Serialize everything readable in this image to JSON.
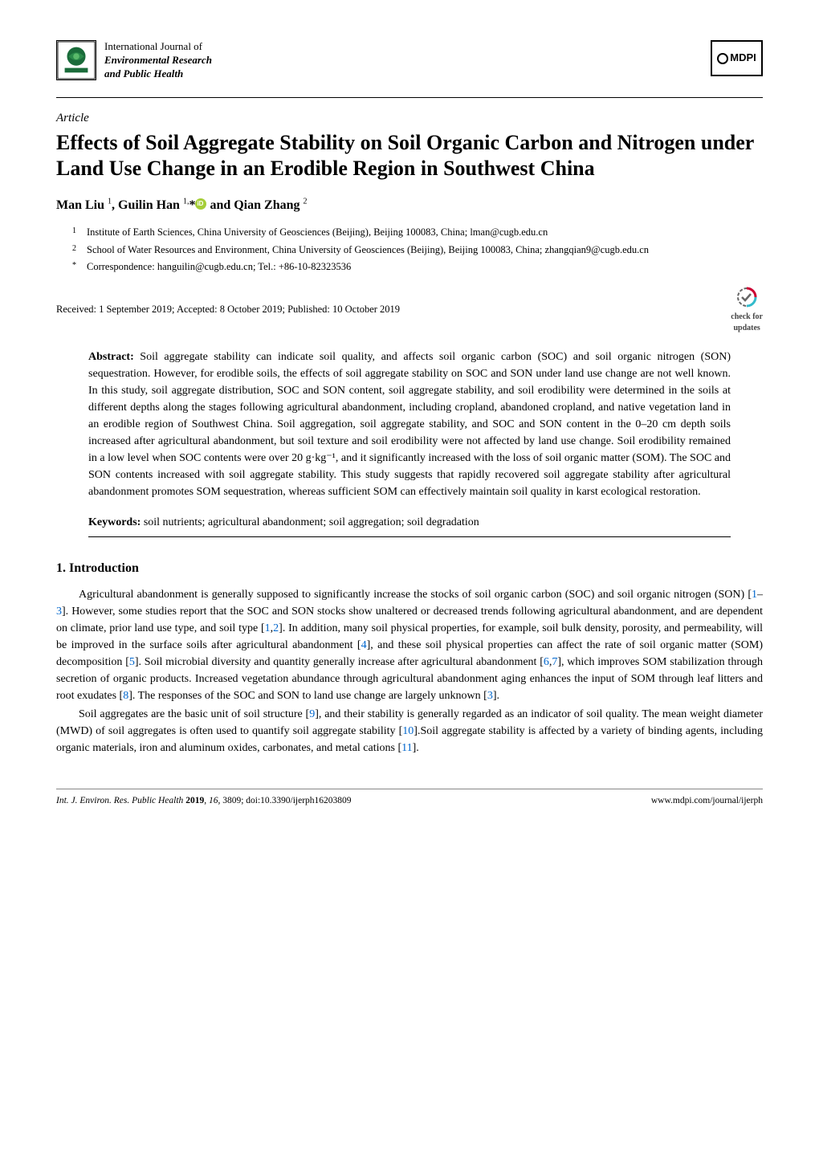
{
  "journal": {
    "line1": "International Journal of",
    "line2": "Environmental Research",
    "line3": "and Public Health"
  },
  "publisher_logo_text": "MDPI",
  "article_type": "Article",
  "title": "Effects of Soil Aggregate Stability on Soil Organic Carbon and Nitrogen under Land Use Change in an Erodible Region in Southwest China",
  "authors_html": "Man Liu <sup>1</sup>, Guilin Han <sup>1,</sup>*",
  "authors_tail": " and Qian Zhang <sup>2</sup>",
  "affiliations": [
    {
      "num": "1",
      "text": "Institute of Earth Sciences, China University of Geosciences (Beijing), Beijing 100083, China; lman@cugb.edu.cn"
    },
    {
      "num": "2",
      "text": "School of Water Resources and Environment, China University of Geosciences (Beijing), Beijing 100083, China; zhangqian9@cugb.edu.cn"
    },
    {
      "num": "*",
      "text": "Correspondence: hanguilin@cugb.edu.cn; Tel.: +86-10-82323536"
    }
  ],
  "dates": "Received: 1 September 2019; Accepted: 8 October 2019; Published: 10 October 2019",
  "check_updates": {
    "line1": "check for",
    "line2": "updates"
  },
  "abstract": {
    "label": "Abstract:",
    "text": " Soil aggregate stability can indicate soil quality, and affects soil organic carbon (SOC) and soil organic nitrogen (SON) sequestration. However, for erodible soils, the effects of soil aggregate stability on SOC and SON under land use change are not well known. In this study, soil aggregate distribution, SOC and SON content, soil aggregate stability, and soil erodibility were determined in the soils at different depths along the stages following agricultural abandonment, including cropland, abandoned cropland, and native vegetation land in an erodible region of Southwest China. Soil aggregation, soil aggregate stability, and SOC and SON content in the 0–20 cm depth soils increased after agricultural abandonment, but soil texture and soil erodibility were not affected by land use change. Soil erodibility remained in a low level when SOC contents were over 20 g·kg⁻¹, and it significantly increased with the loss of soil organic matter (SOM). The SOC and SON contents increased with soil aggregate stability. This study suggests that rapidly recovered soil aggregate stability after agricultural abandonment promotes SOM sequestration, whereas sufficient SOM can effectively maintain soil quality in karst ecological restoration."
  },
  "keywords": {
    "label": "Keywords:",
    "text": " soil nutrients; agricultural abandonment; soil aggregation; soil degradation"
  },
  "section1": {
    "heading": "1. Introduction",
    "para1_pre": "Agricultural abandonment is generally supposed to significantly increase the stocks of soil organic carbon (SOC) and soil organic nitrogen (SON) [",
    "r1": "1",
    "dash1": "–",
    "r3": "3",
    "p1_a": "]. However, some studies report that the SOC and SON stocks show unaltered or decreased trends following agricultural abandonment, and are dependent on climate, prior land use type, and soil type [",
    "r1b": "1",
    "comma1": ",",
    "r2": "2",
    "p1_b": "]. In addition, many soil physical properties, for example, soil bulk density, porosity, and permeability, will be improved in the surface soils after agricultural abandonment [",
    "r4": "4",
    "p1_c": "], and these soil physical properties can affect the rate of soil organic matter (SOM) decomposition [",
    "r5": "5",
    "p1_d": "]. Soil microbial diversity and quantity generally increase after agricultural abandonment [",
    "r6": "6",
    "comma2": ",",
    "r7": "7",
    "p1_e": "], which improves SOM stabilization through secretion of organic products. Increased vegetation abundance through agricultural abandonment aging enhances the input of SOM through leaf litters and root exudates [",
    "r8": "8",
    "p1_f": "]. The responses of the SOC and SON to land use change are largely unknown [",
    "r3b": "3",
    "p1_g": "].",
    "para2_pre": "Soil aggregates are the basic unit of soil structure [",
    "r9": "9",
    "p2_a": "], and their stability is generally regarded as an indicator of soil quality. The mean weight diameter (MWD) of soil aggregates is often used to quantify soil aggregate stability [",
    "r10": "10",
    "p2_b": "].Soil aggregate stability is affected by a variety of binding agents, including organic materials, iron and aluminum oxides, carbonates, and metal cations [",
    "r11": "11",
    "p2_c": "]."
  },
  "footer": {
    "left": "Int. J. Environ. Res. Public Health 2019, 16, 3809; doi:10.3390/ijerph16203809",
    "right": "www.mdpi.com/journal/ijerph"
  },
  "colors": {
    "ref_link": "#0066cc",
    "orcid_bg": "#a6ce39",
    "check_red": "#cc0033",
    "check_cyan": "#33bbcc",
    "check_grey": "#666666"
  }
}
